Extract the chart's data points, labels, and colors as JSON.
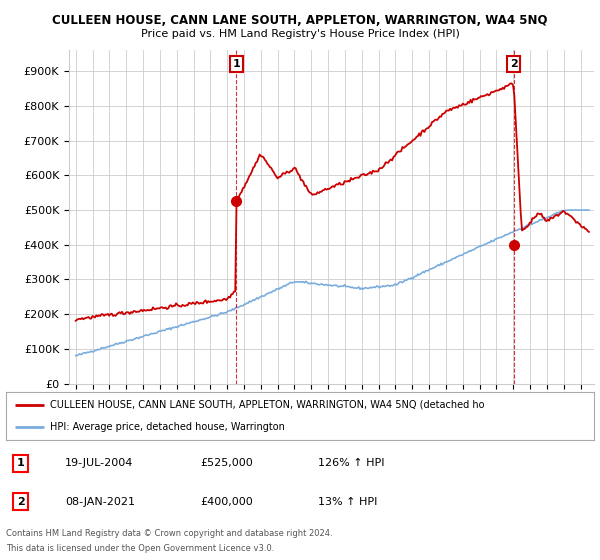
{
  "title": "CULLEEN HOUSE, CANN LANE SOUTH, APPLETON, WARRINGTON, WA4 5NQ",
  "subtitle": "Price paid vs. HM Land Registry's House Price Index (HPI)",
  "ylabel_ticks": [
    "£0",
    "£100K",
    "£200K",
    "£300K",
    "£400K",
    "£500K",
    "£600K",
    "£700K",
    "£800K",
    "£900K"
  ],
  "ytick_values": [
    0,
    100000,
    200000,
    300000,
    400000,
    500000,
    600000,
    700000,
    800000,
    900000
  ],
  "ylim": [
    0,
    960000
  ],
  "year_start": 1995,
  "year_end": 2025,
  "sale1_year": 2004.55,
  "sale1_price": 525000,
  "sale2_year": 2021.03,
  "sale2_price": 400000,
  "sale1_label": "1",
  "sale2_label": "2",
  "red_color": "#cc0000",
  "blue_color": "#7aadde",
  "legend_entry1": "CULLEEN HOUSE, CANN LANE SOUTH, APPLETON, WARRINGTON, WA4 5NQ (detached ho",
  "legend_entry2": "HPI: Average price, detached house, Warrington",
  "table_row1": [
    "1",
    "19-JUL-2004",
    "£525,000",
    "126% ↑ HPI"
  ],
  "table_row2": [
    "2",
    "08-JAN-2021",
    "£400,000",
    "13% ↑ HPI"
  ],
  "footer1": "Contains HM Land Registry data © Crown copyright and database right 2024.",
  "footer2": "This data is licensed under the Open Government Licence v3.0.",
  "background_color": "#ffffff",
  "grid_color": "#cccccc"
}
